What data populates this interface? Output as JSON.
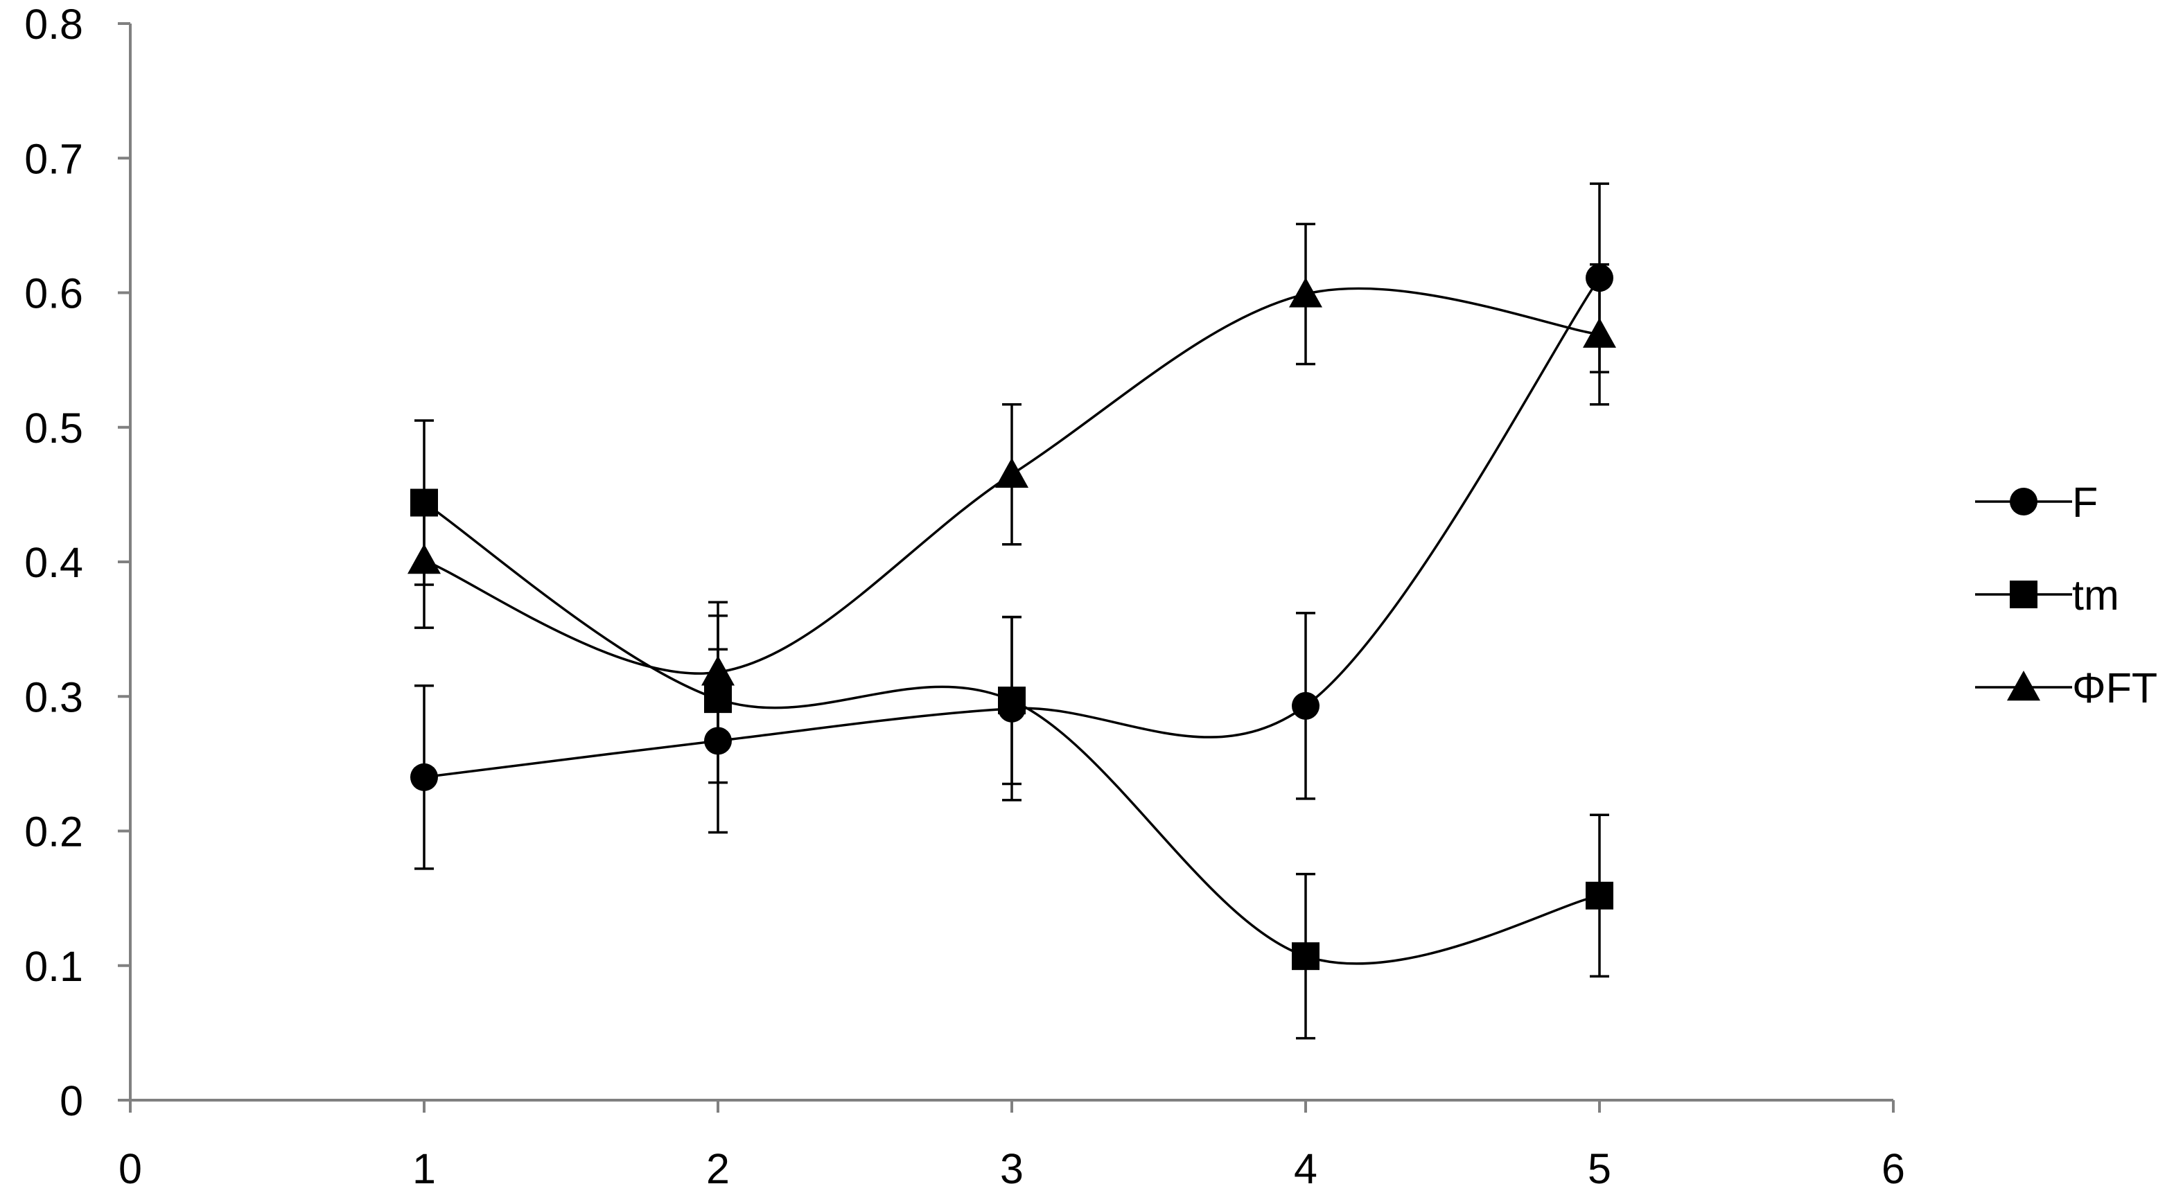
{
  "chart_data": {
    "type": "line",
    "title": "",
    "xlabel": "",
    "ylabel": "",
    "xlim": [
      0,
      6
    ],
    "ylim": [
      0,
      0.8
    ],
    "x_ticks": [
      "0",
      "1",
      "2",
      "3",
      "4",
      "5",
      "6"
    ],
    "y_ticks": [
      "0",
      "0.1",
      "0.2",
      "0.3",
      "0.4",
      "0.5",
      "0.6",
      "0.7",
      "0.8"
    ],
    "grid": false,
    "smooth": true,
    "line_color": "#000000",
    "legend": {
      "position": "right",
      "entries": [
        {
          "label": "F",
          "marker": "circle"
        },
        {
          "label": "tm",
          "marker": "square"
        },
        {
          "label": "ΦFT",
          "marker": "triangle"
        }
      ]
    },
    "x": [
      1,
      2,
      3,
      4,
      5
    ],
    "series": [
      {
        "name": "F",
        "marker": "circle",
        "values": [
          0.24,
          0.267,
          0.291,
          0.293,
          0.611
        ],
        "errors": [
          0.068,
          0.068,
          0.068,
          0.069,
          0.07
        ]
      },
      {
        "name": "tm",
        "marker": "square",
        "values": [
          0.444,
          0.298,
          0.297,
          0.107,
          0.152
        ],
        "errors": [
          0.061,
          0.062,
          0.062,
          0.061,
          0.06
        ]
      },
      {
        "name": "ΦFT",
        "marker": "triangle",
        "values": [
          0.401,
          0.318,
          0.465,
          0.599,
          0.569
        ],
        "errors": [
          0.05,
          0.052,
          0.052,
          0.052,
          0.052
        ]
      }
    ]
  }
}
